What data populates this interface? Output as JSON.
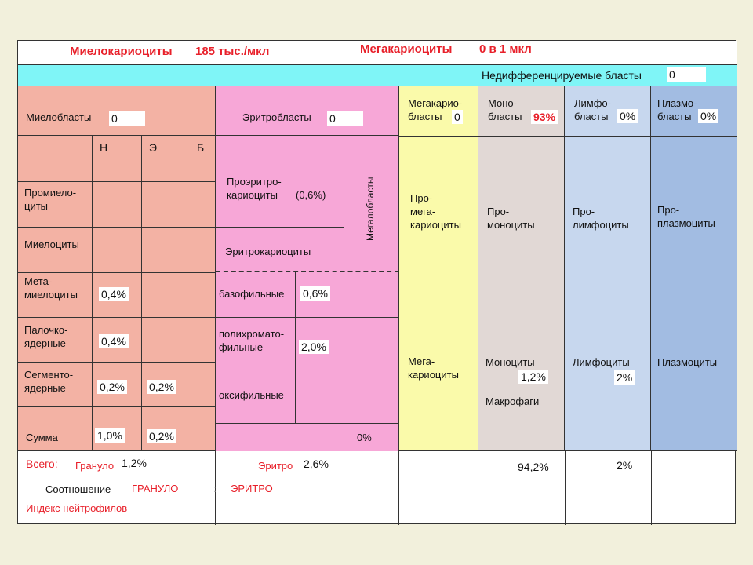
{
  "header": {
    "myelokaryocytes_label": "Миелокариоциты",
    "myelokaryocytes_value": "185  тыс./мкл",
    "megakaryocytes_label": "Мегакариоциты",
    "megakaryocytes_value": "0  в 1 мкл"
  },
  "undiff": {
    "label": "Недифференцируемые бласты",
    "value": "0"
  },
  "myeloid": {
    "blasts_label": "Миелобласты",
    "blasts_value": "0",
    "col_n": "Н",
    "col_e": "Э",
    "col_b": "Б",
    "rows": [
      {
        "label": "Промиело-\nциты",
        "n": "",
        "e": "",
        "b": ""
      },
      {
        "label": "Миелоциты",
        "n": "",
        "e": "",
        "b": ""
      },
      {
        "label": "Мета-\nмиелоциты",
        "n": "0,4%",
        "e": "",
        "b": ""
      },
      {
        "label": "Палочко-\nядерные",
        "n": "0,4%",
        "e": "",
        "b": ""
      },
      {
        "label": "Сегменто-\nядерные",
        "n": "0,2%",
        "e": "0,2%",
        "b": ""
      },
      {
        "label": "Сумма",
        "n": "1,0%",
        "e": "0,2%",
        "b": ""
      }
    ]
  },
  "erythroid": {
    "blasts_label": "Эритробласты",
    "blasts_value": "0",
    "proery_label": "Проэритро-\nкариоциты",
    "proery_value": "(0,6%)",
    "megaloblasts_label": "Мегалобласты",
    "erythrokaryocytes_label": "Эритрокариоциты",
    "basophilic_label": "базофильные",
    "basophilic_value": "0,6%",
    "polychromatophilic_label": "полихромато-\nфильные",
    "polychromatophilic_value": "2,0%",
    "oxyphilic_label": "оксифильные",
    "oxyphilic_value": "",
    "sum_value": "0%"
  },
  "megakaryo": {
    "blasts_label": "Мегакарио-\nбласты",
    "blasts_value": "0",
    "pro_label": "Про-\nмега-\nкариоциты",
    "mature_label": "Мега-\nкариоциты"
  },
  "mono": {
    "blasts_label": "Моно-\nбласты",
    "blasts_value": "93%",
    "pro_label": "Про-\nмоноциты",
    "mature_label": "Моноциты",
    "mature_value": "1,2%",
    "macrophages_label": "Макрофаги"
  },
  "lympho": {
    "blasts_label": "Лимфо-\nбласты",
    "blasts_value": "0%",
    "pro_label": "Про-\nлимфоциты",
    "mature_label": "Лимфоциты",
    "mature_value": "2%"
  },
  "plasma": {
    "blasts_label": "Плазмо-\nбласты",
    "blasts_value": "0%",
    "pro_label": "Про-\nплазмоциты",
    "mature_label": "Плазмоциты"
  },
  "totals": {
    "all_label": "Всего:",
    "granulo_label": "Грануло",
    "granulo_value": "1,2%",
    "ratio_label": "Соотношение",
    "ratio_granulo": "ГРАНУЛО",
    "ratio_sep": ":",
    "ratio_erythro": "ЭРИТРО",
    "neutrophil_index_label": "Индекс нейтрофилов",
    "erythro_label": "Эритро",
    "erythro_value": "2,6%",
    "mono_total": "94,2%",
    "lympho_total": "2%"
  },
  "colors": {
    "page_bg": "#f2f0dc",
    "cyan": "#7ff5f7",
    "salmon": "#f3b2a4",
    "pink": "#f7a7d7",
    "yellow": "#fafaaa",
    "mono_bg": "#e1d8d5",
    "lympho_bg": "#c7d7ee",
    "plasma_bg": "#a2bce2",
    "accent_red": "#e8202a"
  }
}
